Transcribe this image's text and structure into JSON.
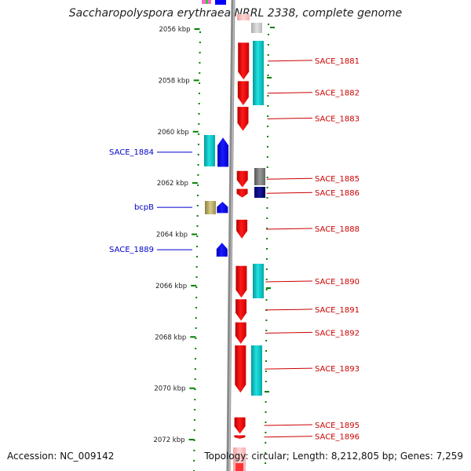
{
  "title": "Saccharopolyspora erythraea NRRL 2338, complete genome",
  "accession": "Accession: NC_009142",
  "stats": "Topology: circular; Length: 8,212,805 bp; Genes: 7,259",
  "colors": {
    "forward_cds": "#ff0000",
    "reverse_cds": "#0000ff",
    "cyan_feature": "#00cccc",
    "tick": "#008000",
    "backbone": "#888888",
    "label_left": "#0000cc",
    "label_right": "#cc0000"
  },
  "ticks": [
    {
      "label": "2056 kbp",
      "kbp": 2056
    },
    {
      "label": "2058 kbp",
      "kbp": 2058
    },
    {
      "label": "2060 kbp",
      "kbp": 2060
    },
    {
      "label": "2062 kbp",
      "kbp": 2062
    },
    {
      "label": "2064 kbp",
      "kbp": 2064
    },
    {
      "label": "2066 kbp",
      "kbp": 2066
    },
    {
      "label": "2068 kbp",
      "kbp": 2068
    },
    {
      "label": "2070 kbp",
      "kbp": 2070
    },
    {
      "label": "2072 kbp",
      "kbp": 2072
    }
  ],
  "genes_reverse": [
    {
      "label": "SACE_1884",
      "start": 2060.2,
      "end": 2061.4
    },
    {
      "label": "bcpB",
      "start": 2062.7,
      "end": 2063.2
    },
    {
      "label": "SACE_1889",
      "start": 2064.3,
      "end": 2064.9
    }
  ],
  "genes_forward": [
    {
      "label": "SACE_1881",
      "start": 2056.5,
      "end": 2058.0
    },
    {
      "label": "SACE_1882",
      "start": 2058.0,
      "end": 2059.0
    },
    {
      "label": "SACE_1883",
      "start": 2059.0,
      "end": 2060.0
    },
    {
      "label": "SACE_1885",
      "start": 2061.5,
      "end": 2062.2
    },
    {
      "label": "SACE_1886",
      "start": 2062.2,
      "end": 2062.6
    },
    {
      "label": "SACE_1888",
      "start": 2063.4,
      "end": 2064.2
    },
    {
      "label": "SACE_1890",
      "start": 2065.2,
      "end": 2066.5
    },
    {
      "label": "SACE_1891",
      "start": 2066.5,
      "end": 2067.4
    },
    {
      "label": "SACE_1892",
      "start": 2067.4,
      "end": 2068.3
    },
    {
      "label": "SACE_1893",
      "start": 2068.3,
      "end": 2070.2
    },
    {
      "label": "SACE_1895",
      "start": 2071.1,
      "end": 2071.8
    },
    {
      "label": "SACE_1896",
      "start": 2071.8,
      "end": 2072.0
    }
  ]
}
